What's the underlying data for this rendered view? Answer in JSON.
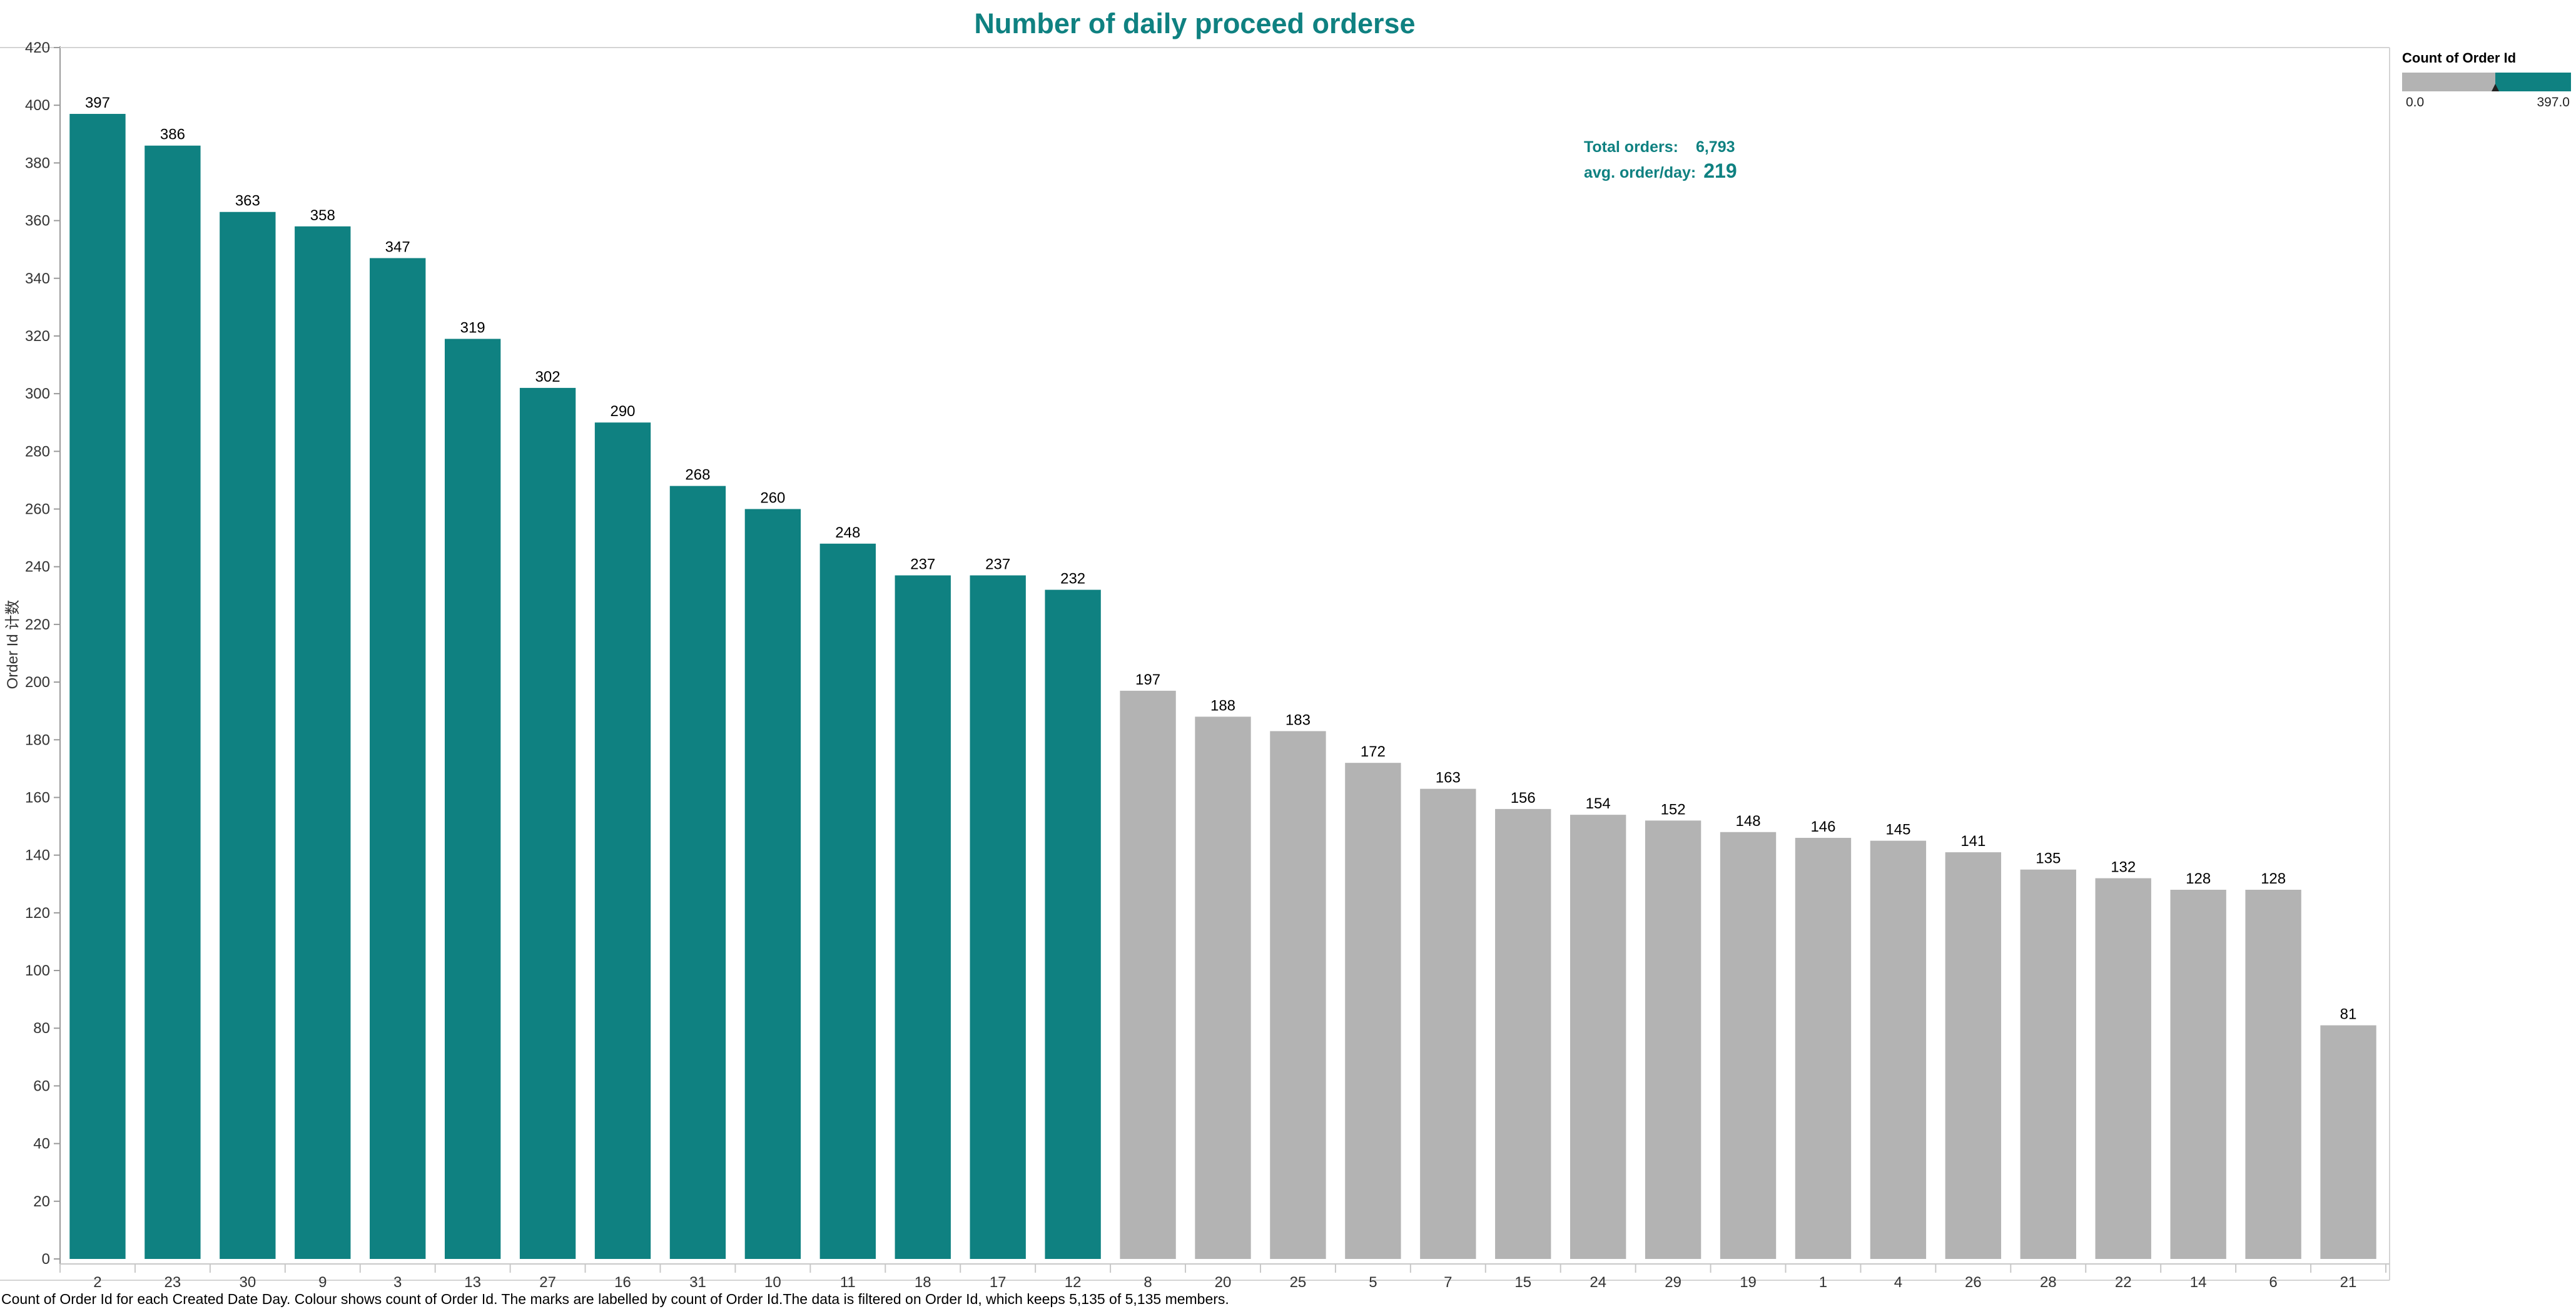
{
  "title": "Number of daily proceed orderse",
  "accent_color": "#0f8181",
  "muted_color": "#b3b3b3",
  "summary": {
    "total_label": "Total orders:",
    "total_value": "6,793",
    "avg_label": "avg. order/day:",
    "avg_value": "219"
  },
  "legend": {
    "title": "Count of Order Id",
    "min_label": "0.0",
    "max_label": "397.0"
  },
  "caption": "Count of Order Id for each Created Date Day. Colour shows count of Order Id. The marks are labelled by count of Order Id.The data is filtered on Order Id, which keeps 5,135 of 5,135 members.",
  "chart_data": {
    "type": "bar",
    "title": "Number of daily proceed orderse",
    "xlabel": "",
    "ylabel": "Order Id 计数",
    "ylim": [
      0,
      420
    ],
    "yticks": [
      0,
      20,
      40,
      60,
      80,
      100,
      120,
      140,
      160,
      180,
      200,
      220,
      240,
      260,
      280,
      300,
      320,
      340,
      360,
      380,
      400,
      420
    ],
    "grid": false,
    "legend_position": "top-right",
    "color_threshold": 219,
    "high_color": "#0f8181",
    "low_color": "#b3b3b3",
    "categories": [
      "2",
      "23",
      "30",
      "9",
      "3",
      "13",
      "27",
      "16",
      "31",
      "10",
      "11",
      "18",
      "17",
      "12",
      "8",
      "20",
      "25",
      "5",
      "7",
      "15",
      "24",
      "29",
      "19",
      "1",
      "4",
      "26",
      "28",
      "22",
      "14",
      "6",
      "21"
    ],
    "values": [
      397,
      386,
      363,
      358,
      347,
      319,
      302,
      290,
      268,
      260,
      248,
      237,
      237,
      232,
      197,
      188,
      183,
      172,
      163,
      156,
      154,
      152,
      148,
      146,
      145,
      141,
      135,
      132,
      128,
      128,
      81
    ]
  }
}
